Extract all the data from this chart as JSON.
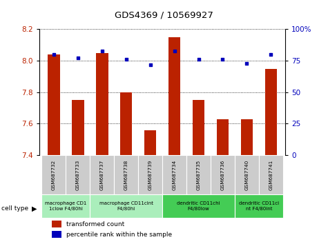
{
  "title": "GDS4369 / 10569927",
  "samples": [
    "GSM687732",
    "GSM687733",
    "GSM687737",
    "GSM687738",
    "GSM687739",
    "GSM687734",
    "GSM687735",
    "GSM687736",
    "GSM687740",
    "GSM687741"
  ],
  "transformed_count": [
    8.04,
    7.75,
    8.05,
    7.8,
    7.56,
    8.15,
    7.75,
    7.63,
    7.63,
    7.95
  ],
  "percentile_rank": [
    80,
    77,
    83,
    76,
    72,
    83,
    76,
    76,
    73,
    80
  ],
  "ylim_left": [
    7.4,
    8.2
  ],
  "ylim_right": [
    0,
    100
  ],
  "yticks_left": [
    7.4,
    7.6,
    7.8,
    8.0,
    8.2
  ],
  "yticks_right": [
    0,
    25,
    50,
    75,
    100
  ],
  "bar_color": "#bb2200",
  "dot_color": "#0000bb",
  "cell_groups": [
    {
      "label": "macrophage CD1\n1clow F4/80hi",
      "start": 0,
      "end": 2,
      "color": "#aaeebb"
    },
    {
      "label": "macrophage CD11cint\nF4/80hi",
      "start": 2,
      "end": 5,
      "color": "#aaeebb"
    },
    {
      "label": "dendritic CD11chi\nF4/80low",
      "start": 5,
      "end": 8,
      "color": "#44cc55"
    },
    {
      "label": "dendritic CD11ci\nnt F4/80int",
      "start": 8,
      "end": 10,
      "color": "#44cc55"
    }
  ],
  "legend_bar_label": "transformed count",
  "legend_dot_label": "percentile rank within the sample",
  "cell_type_label": "cell type",
  "sample_box_color": "#cccccc",
  "bar_width": 0.5
}
